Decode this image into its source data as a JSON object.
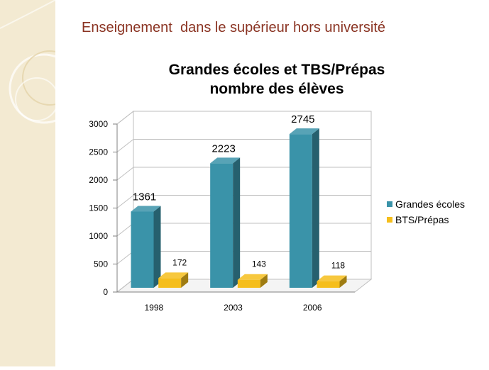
{
  "slide": {
    "title": "Enseignement  dans le supérieur hors université"
  },
  "colors": {
    "background": "#ffffff",
    "side_panel": "#f3ead2",
    "title_text": "#8a3322",
    "series_1": "#3a93a9",
    "series_2": "#f5be1c"
  },
  "chart_data": {
    "type": "bar",
    "title": "Grandes écoles et TBS/Prépas\nnombre des élèves",
    "title_lines": [
      "Grandes écoles et TBS/Prépas",
      "nombre des élèves"
    ],
    "categories": [
      "1998",
      "2003",
      "2006"
    ],
    "series": [
      {
        "name": "Grandes écoles",
        "values": [
          1361,
          2223,
          2745
        ]
      },
      {
        "name": "BTS/Prépas",
        "values": [
          172,
          143,
          118
        ]
      }
    ],
    "ylim": [
      0,
      3000
    ],
    "yticks": [
      "0",
      "500",
      "1000",
      "1500",
      "2000",
      "2500",
      "3000"
    ],
    "grid": true,
    "legend": "right",
    "style": "3d"
  }
}
